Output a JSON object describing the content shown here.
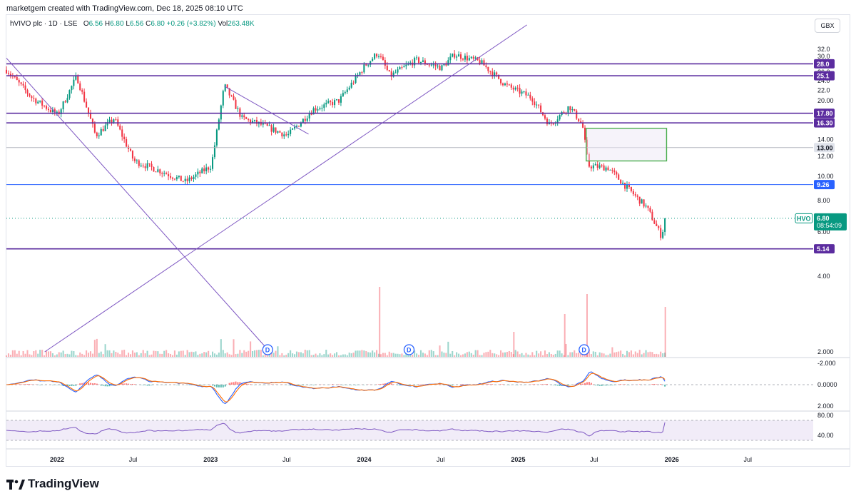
{
  "caption": "marketgem created with TradingView.com, Dec 18, 2025 08:10 UTC",
  "legend": {
    "symbol": "hVIVO plc · 1D · LSE",
    "o_label": "O",
    "o": "6.56",
    "h_label": "H",
    "h": "6.80",
    "l_label": "L",
    "l": "6.56",
    "c_label": "C",
    "c": "6.80",
    "change": "+0.26 (+3.82%)",
    "vol_label": "Vol",
    "vol": "263.48K"
  },
  "currency": "GBX",
  "brand": "TradingView",
  "colors": {
    "up": "#089981",
    "down": "#f23645",
    "level": "#5b2c9f",
    "trend": "#7e57c2",
    "blue": "#2962ff",
    "macd": "#2962ff",
    "signal": "#ff6d00",
    "rsi": "#7e57c2",
    "box": "#4caf50"
  },
  "chart_data": [
    {
      "type": "line",
      "title": "",
      "xlabel": "",
      "ylabel": "",
      "x_ticks": [
        "2022",
        "Jul",
        "2023",
        "Jul",
        "2024",
        "Jul",
        "2025",
        "Jul",
        "2026",
        "Jul"
      ],
      "y_ticks": [
        "2.000",
        "4.00",
        "6.00",
        "8.00",
        "10.00",
        "12.00",
        "14.00",
        "20.00",
        "22.0",
        "24.0",
        "26.0",
        "30.0",
        "32.0"
      ],
      "ylim": [
        2.0,
        32.0
      ],
      "y_scale": "log",
      "price_series_approx": [
        [
          "2021-09-01",
          26.5
        ],
        [
          "2021-11-01",
          20.5
        ],
        [
          "2022-01-01",
          17.5
        ],
        [
          "2022-02-15",
          25.0
        ],
        [
          "2022-04-01",
          14.5
        ],
        [
          "2022-05-15",
          17.0
        ],
        [
          "2022-07-01",
          11.5
        ],
        [
          "2022-09-01",
          10.5
        ],
        [
          "2022-11-01",
          9.5
        ],
        [
          "2023-01-01",
          11.0
        ],
        [
          "2023-02-01",
          23.0
        ],
        [
          "2023-03-15",
          17.0
        ],
        [
          "2023-05-01",
          16.0
        ],
        [
          "2023-07-01",
          14.5
        ],
        [
          "2023-09-01",
          18.5
        ],
        [
          "2023-11-01",
          20.0
        ],
        [
          "2024-01-01",
          27.5
        ],
        [
          "2024-02-01",
          31.0
        ],
        [
          "2024-03-01",
          25.0
        ],
        [
          "2024-05-01",
          29.0
        ],
        [
          "2024-07-01",
          27.0
        ],
        [
          "2024-08-01",
          30.5
        ],
        [
          "2024-10-01",
          28.5
        ],
        [
          "2024-12-01",
          23.0
        ],
        [
          "2025-02-01",
          20.5
        ],
        [
          "2025-03-15",
          16.0
        ],
        [
          "2025-05-01",
          19.0
        ],
        [
          "2025-06-01",
          16.0
        ],
        [
          "2025-06-15",
          11.0
        ],
        [
          "2025-08-01",
          10.8
        ],
        [
          "2025-09-15",
          9.0
        ],
        [
          "2025-11-01",
          7.5
        ],
        [
          "2025-12-05",
          5.8
        ],
        [
          "2025-12-18",
          6.8
        ]
      ],
      "horizontal_levels": [
        {
          "label": "28.0",
          "value": 28.0,
          "kind": "level"
        },
        {
          "label": "25.1",
          "value": 25.1,
          "kind": "level"
        },
        {
          "label": "17.80",
          "value": 17.8,
          "kind": "level"
        },
        {
          "label": "16.30",
          "value": 16.3,
          "kind": "level"
        },
        {
          "label": "13.00",
          "value": 13.0,
          "kind": "grey"
        },
        {
          "label": "9.26",
          "value": 9.26,
          "kind": "blue"
        },
        {
          "label": "5.14",
          "value": 5.14,
          "kind": "level"
        }
      ],
      "last_price": {
        "symbol": "HVO",
        "value": "6.80",
        "countdown": "08:54:09"
      },
      "dividend_markers": [
        "D",
        "D",
        "D"
      ],
      "zone": {
        "from_date": "2025-06-10",
        "to_date": "2025-12-18",
        "top": 15.5,
        "bottom": 11.5
      }
    },
    {
      "type": "line",
      "title": "",
      "y_ticks": [
        "2.000",
        "0.0000",
        "-2.000"
      ],
      "ylim": [
        -2.0,
        2.0
      ]
    },
    {
      "type": "line",
      "title": "",
      "y_ticks": [
        "80.00",
        "40.00"
      ],
      "ylim": [
        20,
        90
      ],
      "band": [
        30,
        70
      ]
    }
  ]
}
